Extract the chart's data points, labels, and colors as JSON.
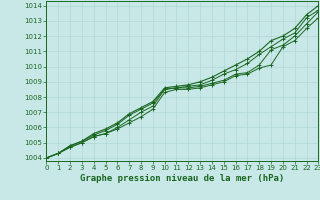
{
  "x": [
    0,
    1,
    2,
    3,
    4,
    5,
    6,
    7,
    8,
    9,
    10,
    11,
    12,
    13,
    14,
    15,
    16,
    17,
    18,
    19,
    20,
    21,
    22,
    23
  ],
  "y_line1": [
    1004.0,
    1004.3,
    1004.7,
    1005.0,
    1005.4,
    1005.6,
    1005.9,
    1006.3,
    1006.7,
    1007.2,
    1008.3,
    1008.5,
    1008.5,
    1008.6,
    1008.8,
    1009.0,
    1009.4,
    1009.5,
    1009.9,
    1010.1,
    1011.3,
    1011.7,
    1012.5,
    1013.2
  ],
  "y_line2": [
    1004.0,
    1004.3,
    1004.7,
    1005.0,
    1005.4,
    1005.6,
    1006.0,
    1006.5,
    1007.0,
    1007.4,
    1008.5,
    1008.6,
    1008.6,
    1008.7,
    1008.9,
    1009.1,
    1009.5,
    1009.6,
    1010.1,
    1011.1,
    1011.4,
    1012.0,
    1012.8,
    1013.6
  ],
  "y_line3": [
    1004.0,
    1004.3,
    1004.8,
    1005.1,
    1005.5,
    1005.8,
    1006.2,
    1006.8,
    1007.2,
    1007.6,
    1008.5,
    1008.6,
    1008.7,
    1008.8,
    1009.1,
    1009.5,
    1009.8,
    1010.2,
    1010.8,
    1011.3,
    1011.8,
    1012.2,
    1013.2,
    1013.7
  ],
  "y_line4": [
    1004.0,
    1004.3,
    1004.8,
    1005.1,
    1005.6,
    1005.9,
    1006.3,
    1006.9,
    1007.3,
    1007.7,
    1008.6,
    1008.7,
    1008.8,
    1009.0,
    1009.3,
    1009.7,
    1010.1,
    1010.5,
    1011.0,
    1011.7,
    1012.0,
    1012.5,
    1013.4,
    1014.0
  ],
  "bg_color": "#c8e8e8",
  "grid_color": "#b0d8d8",
  "line_color": "#1a6620",
  "xlabel": "Graphe pression niveau de la mer (hPa)",
  "xlim": [
    0,
    23
  ],
  "ylim": [
    1003.8,
    1014.3
  ],
  "yticks": [
    1004,
    1005,
    1006,
    1007,
    1008,
    1009,
    1010,
    1011,
    1012,
    1013,
    1014
  ],
  "xticks": [
    0,
    1,
    2,
    3,
    4,
    5,
    6,
    7,
    8,
    9,
    10,
    11,
    12,
    13,
    14,
    15,
    16,
    17,
    18,
    19,
    20,
    21,
    22,
    23
  ]
}
